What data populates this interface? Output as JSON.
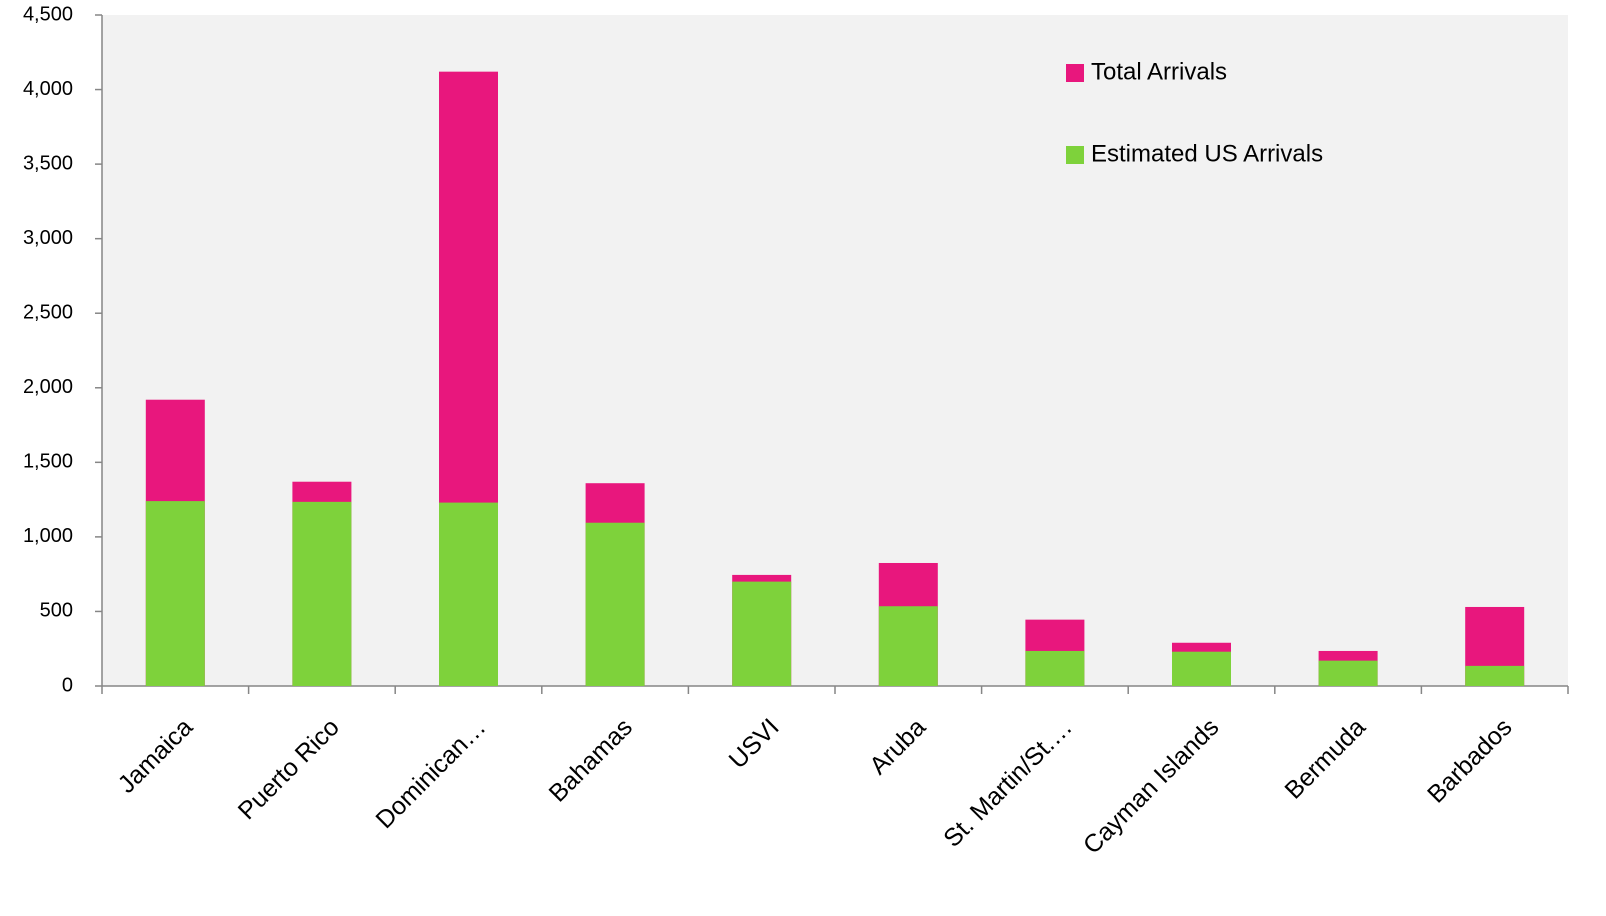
{
  "chart_data": {
    "type": "bar",
    "overlap": true,
    "legend": "top-right",
    "categories": [
      "Jamaica",
      "Puerto Rico",
      "Dominican…",
      "Bahamas",
      "USVI",
      "Aruba",
      "St. Martin/St.…",
      "Cayman Islands",
      "Bermuda",
      "Barbados"
    ],
    "series": [
      {
        "name": "Total Arrivals",
        "color": "#e8177d",
        "values": [
          1920,
          1370,
          4120,
          1360,
          745,
          825,
          445,
          290,
          235,
          530
        ]
      },
      {
        "name": "Estimated US Arrivals",
        "color": "#7ed23b",
        "values": [
          1240,
          1235,
          1230,
          1095,
          700,
          535,
          235,
          230,
          170,
          135
        ]
      }
    ],
    "ylim": [
      0,
      4500
    ],
    "yticks": [
      0,
      500,
      {
        "value": 1000,
        "label": "1,000"
      },
      {
        "value": 1500,
        "label": "1,500"
      },
      {
        "value": 2000,
        "label": "2,000"
      },
      {
        "value": 2500,
        "label": "2,500"
      },
      {
        "value": 3000,
        "label": "3,000"
      },
      {
        "value": 3500,
        "label": "3,500"
      },
      {
        "value": 4000,
        "label": "4,000"
      },
      {
        "value": 4500,
        "label": "4,500"
      }
    ]
  }
}
